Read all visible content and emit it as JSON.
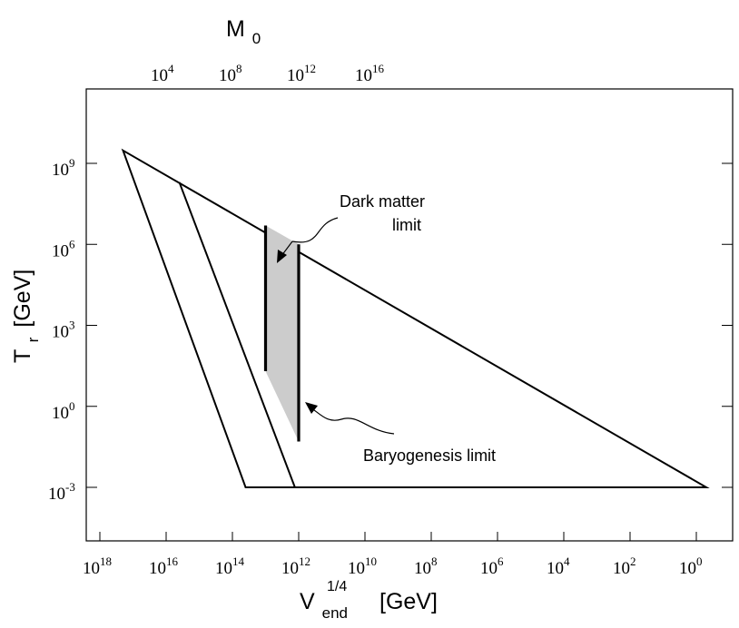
{
  "chart_data": {
    "type": "area",
    "x_axis": {
      "label_main": "V",
      "label_sub": "end",
      "label_sup": "1/4",
      "label_unit": "[GeV]",
      "scale": "log",
      "reversed": true,
      "range": [
        1e+18,
        1.0
      ],
      "ticks": [
        {
          "base": "10",
          "exp": "18",
          "value": 1e+18
        },
        {
          "base": "10",
          "exp": "16",
          "value": 1e+16
        },
        {
          "base": "10",
          "exp": "14",
          "value": 100000000000000.0
        },
        {
          "base": "10",
          "exp": "12",
          "value": 1000000000000.0
        },
        {
          "base": "10",
          "exp": "10",
          "value": 10000000000.0
        },
        {
          "base": "10",
          "exp": "8",
          "value": 100000000.0
        },
        {
          "base": "10",
          "exp": "6",
          "value": 1000000.0
        },
        {
          "base": "10",
          "exp": "4",
          "value": 10000.0
        },
        {
          "base": "10",
          "exp": "2",
          "value": 100.0
        },
        {
          "base": "10",
          "exp": "0",
          "value": 1.0
        }
      ]
    },
    "top_axis": {
      "label_main": "M",
      "label_sub": "0",
      "ticks": [
        {
          "base": "10",
          "exp": "4"
        },
        {
          "base": "10",
          "exp": "8"
        },
        {
          "base": "10",
          "exp": "12"
        },
        {
          "base": "10",
          "exp": "16"
        }
      ]
    },
    "y_axis": {
      "label_main": "T",
      "label_sub": "r",
      "label_unit": "[GeV]",
      "scale": "log",
      "range": [
        1e-05,
        1000000000000.0
      ],
      "ticks": [
        {
          "base": "10",
          "exp": "9",
          "value": 1000000000.0
        },
        {
          "base": "10",
          "exp": "6",
          "value": 1000000.0
        },
        {
          "base": "10",
          "exp": "3",
          "value": 1000.0
        },
        {
          "base": "10",
          "exp": "0",
          "value": 1.0
        },
        {
          "base": "10",
          "exp": "-3",
          "value": 0.001
        }
      ]
    },
    "regions": [
      {
        "kind": "outer-triangle",
        "fill": "#ffffff",
        "points": [
          [
            2e+17,
            3000000000.0
          ],
          [
            40000000000000.0,
            0.001
          ],
          [
            0.5,
            0.001
          ]
        ]
      },
      {
        "kind": "inner-line",
        "points": [
          [
            4000000000000000.0,
            200000000.0
          ],
          [
            1300000000000.0,
            0.001
          ]
        ]
      },
      {
        "kind": "allowed-band",
        "fill": "#cccccc",
        "points": [
          [
            10000000000000.0,
            5000000.0
          ],
          [
            10000000000000.0,
            20.0
          ],
          [
            1000000000000.0,
            0.05
          ],
          [
            1000000000000.0,
            1000000.0
          ]
        ]
      }
    ],
    "annotations": [
      {
        "text_line1": "Dark matter",
        "text_line2": "limit"
      },
      {
        "text_line1": "Baryogenesis limit"
      }
    ],
    "grid": false
  }
}
